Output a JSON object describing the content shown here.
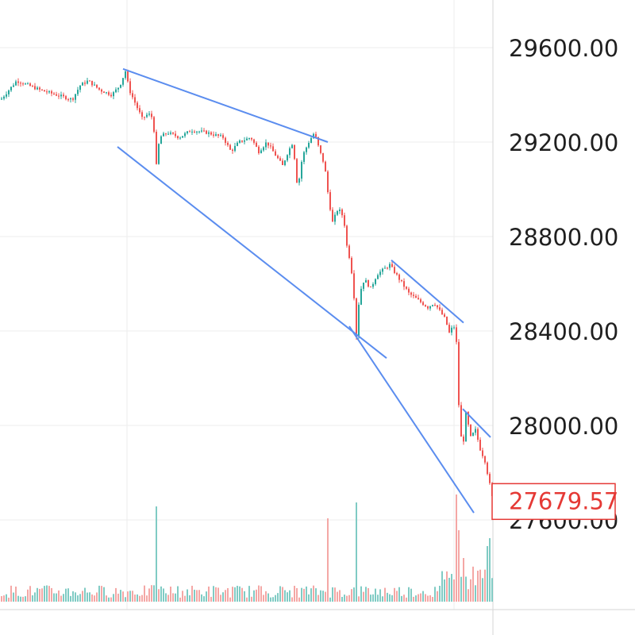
{
  "chart_data": {
    "type": "candlestick",
    "price_axis": {
      "ticks": [
        "29600.00",
        "29200.00",
        "28800.00",
        "28400.00",
        "28000.00",
        "27600.00"
      ],
      "tick_values": [
        29600,
        29200,
        28800,
        28400,
        28000,
        27600
      ],
      "ylim": [
        27300,
        29800
      ],
      "side": "right"
    },
    "last_price": {
      "label": "27679.57",
      "value": 27679.57
    },
    "grid": true,
    "colors": {
      "up": "#26a69a",
      "down": "#ef5350",
      "trendline": "#5b8def",
      "grid": "#ececec",
      "last_price": "#e53935"
    },
    "price_path": [
      [
        0,
        29380
      ],
      [
        10,
        29420
      ],
      [
        20,
        29460
      ],
      [
        35,
        29440
      ],
      [
        50,
        29420
      ],
      [
        70,
        29400
      ],
      [
        90,
        29380
      ],
      [
        100,
        29440
      ],
      [
        110,
        29460
      ],
      [
        125,
        29420
      ],
      [
        140,
        29400
      ],
      [
        150,
        29440
      ],
      [
        157,
        29500
      ],
      [
        162,
        29420
      ],
      [
        170,
        29360
      ],
      [
        178,
        29300
      ],
      [
        186,
        29320
      ],
      [
        192,
        29300
      ],
      [
        196,
        29100
      ],
      [
        200,
        29220
      ],
      [
        210,
        29240
      ],
      [
        225,
        29220
      ],
      [
        240,
        29250
      ],
      [
        260,
        29240
      ],
      [
        280,
        29220
      ],
      [
        290,
        29160
      ],
      [
        300,
        29200
      ],
      [
        315,
        29220
      ],
      [
        325,
        29160
      ],
      [
        335,
        29200
      ],
      [
        345,
        29150
      ],
      [
        355,
        29100
      ],
      [
        362,
        29160
      ],
      [
        368,
        29200
      ],
      [
        374,
        29000
      ],
      [
        380,
        29140
      ],
      [
        388,
        29200
      ],
      [
        395,
        29240
      ],
      [
        402,
        29160
      ],
      [
        408,
        29100
      ],
      [
        413,
        28960
      ],
      [
        418,
        28860
      ],
      [
        425,
        28920
      ],
      [
        432,
        28880
      ],
      [
        436,
        28760
      ],
      [
        440,
        28700
      ],
      [
        444,
        28600
      ],
      [
        448,
        28380
      ],
      [
        452,
        28560
      ],
      [
        458,
        28620
      ],
      [
        466,
        28580
      ],
      [
        474,
        28640
      ],
      [
        482,
        28660
      ],
      [
        490,
        28680
      ],
      [
        498,
        28640
      ],
      [
        506,
        28600
      ],
      [
        514,
        28560
      ],
      [
        522,
        28540
      ],
      [
        530,
        28520
      ],
      [
        538,
        28500
      ],
      [
        546,
        28520
      ],
      [
        554,
        28480
      ],
      [
        560,
        28450
      ],
      [
        566,
        28380
      ],
      [
        570,
        28440
      ],
      [
        574,
        28350
      ],
      [
        578,
        28000
      ],
      [
        582,
        27900
      ],
      [
        586,
        28050
      ],
      [
        592,
        27950
      ],
      [
        598,
        27980
      ],
      [
        604,
        27900
      ],
      [
        610,
        27850
      ],
      [
        616,
        27750
      ],
      [
        620,
        27679.57
      ]
    ],
    "trendlines": [
      {
        "from": [
          155,
          29510
        ],
        "to": [
          413,
          29200
        ]
      },
      {
        "from": [
          148,
          29180
        ],
        "to": [
          487,
          28285
        ]
      },
      {
        "from": [
          440,
          28420
        ],
        "to": [
          597,
          27630
        ]
      },
      {
        "from": [
          493,
          28700
        ],
        "to": [
          584,
          28435
        ]
      },
      {
        "from": [
          583,
          28070
        ],
        "to": [
          618,
          27950
        ]
      }
    ],
    "volume_spikes": [
      [
        195,
        120
      ],
      [
        412,
        105
      ],
      [
        447,
        125
      ],
      [
        573,
        135
      ],
      [
        577,
        90
      ],
      [
        582,
        55
      ],
      [
        613,
        70
      ],
      [
        617,
        80
      ]
    ]
  }
}
